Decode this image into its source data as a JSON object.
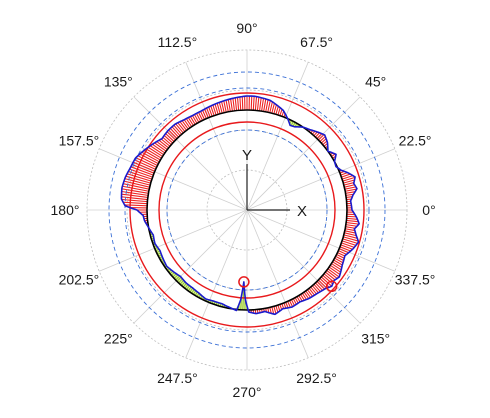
{
  "chart_data": {
    "type": "polar",
    "title": "",
    "angle_labels": [
      "0°",
      "22.5°",
      "45°",
      "67.5°",
      "90°",
      "112.5°",
      "135°",
      "157.5°",
      "180°",
      "202.5°",
      "225°",
      "247.5°",
      "270°",
      "292.5°",
      "315°",
      "337.5°"
    ],
    "angle_label_values": [
      0,
      22.5,
      45,
      67.5,
      90,
      112.5,
      135,
      157.5,
      180,
      202.5,
      225,
      247.5,
      270,
      292.5,
      315,
      337.5
    ],
    "axis_labels": {
      "x": "X",
      "y": "Y"
    },
    "rlim": [
      0,
      1.6
    ],
    "grid_rings": [
      0.4,
      0.8,
      1.2,
      1.6
    ],
    "reference_circle": {
      "name": "",
      "radius": 1.0,
      "color": "#000000"
    },
    "tolerance_circles": [
      {
        "radius": 0.88,
        "color": "#e8191c"
      },
      {
        "radius": 1.17,
        "color": "#e8191c"
      }
    ],
    "dashed_circles": [
      {
        "radius": 0.8,
        "color": "#3a6fd6"
      },
      {
        "radius": 1.22,
        "color": "#3a6fd6"
      },
      {
        "radius": 1.38,
        "color": "#3a6fd6"
      }
    ],
    "profile": {
      "color": "#1a1acc",
      "points": [
        {
          "deg": 0,
          "r": 1.05
        },
        {
          "deg": 5,
          "r": 1.04
        },
        {
          "deg": 8,
          "r": 1.07
        },
        {
          "deg": 11,
          "r": 1.12
        },
        {
          "deg": 14,
          "r": 1.1
        },
        {
          "deg": 17,
          "r": 1.13
        },
        {
          "deg": 20,
          "r": 1.08
        },
        {
          "deg": 23,
          "r": 1.02
        },
        {
          "deg": 26,
          "r": 0.99
        },
        {
          "deg": 29,
          "r": 1.0
        },
        {
          "deg": 32,
          "r": 1.05
        },
        {
          "deg": 36,
          "r": 1.0
        },
        {
          "deg": 40,
          "r": 1.05
        },
        {
          "deg": 44,
          "r": 1.08
        },
        {
          "deg": 48,
          "r": 1.05
        },
        {
          "deg": 52,
          "r": 1.02
        },
        {
          "deg": 56,
          "r": 1.0
        },
        {
          "deg": 60,
          "r": 0.96
        },
        {
          "deg": 63,
          "r": 0.95
        },
        {
          "deg": 66,
          "r": 1.0
        },
        {
          "deg": 70,
          "r": 1.06
        },
        {
          "deg": 74,
          "r": 1.09
        },
        {
          "deg": 78,
          "r": 1.12
        },
        {
          "deg": 82,
          "r": 1.13
        },
        {
          "deg": 86,
          "r": 1.14
        },
        {
          "deg": 90,
          "r": 1.14
        },
        {
          "deg": 95,
          "r": 1.13
        },
        {
          "deg": 100,
          "r": 1.12
        },
        {
          "deg": 105,
          "r": 1.11
        },
        {
          "deg": 110,
          "r": 1.1
        },
        {
          "deg": 115,
          "r": 1.09
        },
        {
          "deg": 120,
          "r": 1.09
        },
        {
          "deg": 125,
          "r": 1.1
        },
        {
          "deg": 130,
          "r": 1.12
        },
        {
          "deg": 135,
          "r": 1.12
        },
        {
          "deg": 140,
          "r": 1.11
        },
        {
          "deg": 145,
          "r": 1.15
        },
        {
          "deg": 150,
          "r": 1.19
        },
        {
          "deg": 155,
          "r": 1.23
        },
        {
          "deg": 160,
          "r": 1.24
        },
        {
          "deg": 165,
          "r": 1.26
        },
        {
          "deg": 170,
          "r": 1.27
        },
        {
          "deg": 175,
          "r": 1.26
        },
        {
          "deg": 178,
          "r": 1.22
        },
        {
          "deg": 180,
          "r": 1.1
        },
        {
          "deg": 183,
          "r": 1.04
        },
        {
          "deg": 186,
          "r": 1.03
        },
        {
          "deg": 190,
          "r": 1.0
        },
        {
          "deg": 195,
          "r": 0.97
        },
        {
          "deg": 200,
          "r": 0.98
        },
        {
          "deg": 205,
          "r": 0.96
        },
        {
          "deg": 210,
          "r": 0.97
        },
        {
          "deg": 215,
          "r": 0.98
        },
        {
          "deg": 220,
          "r": 0.96
        },
        {
          "deg": 225,
          "r": 0.94
        },
        {
          "deg": 230,
          "r": 0.95
        },
        {
          "deg": 235,
          "r": 0.95
        },
        {
          "deg": 240,
          "r": 0.96
        },
        {
          "deg": 245,
          "r": 0.98
        },
        {
          "deg": 250,
          "r": 0.97
        },
        {
          "deg": 255,
          "r": 0.97
        },
        {
          "deg": 260,
          "r": 0.99
        },
        {
          "deg": 264,
          "r": 1.01
        },
        {
          "deg": 266,
          "r": 0.9
        },
        {
          "deg": 267.5,
          "r": 0.72
        },
        {
          "deg": 269,
          "r": 0.9
        },
        {
          "deg": 271,
          "r": 1.02
        },
        {
          "deg": 275,
          "r": 1.04
        },
        {
          "deg": 280,
          "r": 1.03
        },
        {
          "deg": 285,
          "r": 1.08
        },
        {
          "deg": 290,
          "r": 1.05
        },
        {
          "deg": 295,
          "r": 1.07
        },
        {
          "deg": 300,
          "r": 1.06
        },
        {
          "deg": 305,
          "r": 1.08
        },
        {
          "deg": 310,
          "r": 1.09
        },
        {
          "deg": 315,
          "r": 1.11
        },
        {
          "deg": 318,
          "r": 1.14
        },
        {
          "deg": 321,
          "r": 1.12
        },
        {
          "deg": 324,
          "r": 1.14
        },
        {
          "deg": 327,
          "r": 1.12
        },
        {
          "deg": 330,
          "r": 1.1
        },
        {
          "deg": 335,
          "r": 1.08
        },
        {
          "deg": 340,
          "r": 1.13
        },
        {
          "deg": 344,
          "r": 1.16
        },
        {
          "deg": 347,
          "r": 1.12
        },
        {
          "deg": 350,
          "r": 1.09
        },
        {
          "deg": 353,
          "r": 1.13
        },
        {
          "deg": 356,
          "r": 1.1
        },
        {
          "deg": 360,
          "r": 1.05
        }
      ]
    },
    "fill_colors": {
      "outside": "#ee2222",
      "inside": "#ccee33",
      "inside_stroke": "#2a7a3a"
    },
    "markers": [
      {
        "deg": 267.5,
        "r": 0.72,
        "color": "#e8191c"
      },
      {
        "deg": 318,
        "r": 1.14,
        "color": "#e8191c"
      }
    ],
    "grid": true,
    "legend": "none"
  }
}
